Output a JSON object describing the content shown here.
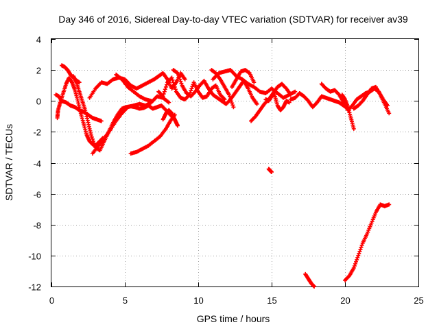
{
  "chart_data": {
    "type": "scatter",
    "title": "Day 346 of 2016, Sidereal Day-to-day VTEC variation (SDTVAR) for receiver av39",
    "xlabel": "GPS time / hours",
    "ylabel": "SDTVAR / TECUs",
    "xlim": [
      0,
      25
    ],
    "ylim": [
      -12,
      4
    ],
    "xticks": [
      0,
      5,
      10,
      15,
      20,
      25
    ],
    "yticks": [
      -12,
      -10,
      -8,
      -6,
      -4,
      -2,
      0,
      2,
      4
    ],
    "xtick_labels": [
      "0",
      "5",
      "10",
      "15",
      "20",
      "25"
    ],
    "ytick_labels": [
      "-12",
      "-10",
      "-8",
      "-6",
      "-4",
      "-2",
      "0",
      "2",
      "4"
    ],
    "grid": true,
    "marker": "+",
    "color": "#ff0000",
    "series": [
      {
        "name": "tr1",
        "x": [
          0.3,
          0.5,
          0.7,
          1.0,
          1.3,
          1.6,
          1.9,
          2.2,
          2.5,
          2.8,
          3.1,
          3.4
        ],
        "y": [
          0.4,
          0.3,
          0.0,
          -0.1,
          -0.3,
          -0.4,
          -0.6,
          -0.7,
          -0.9,
          -1.1,
          -1.2,
          -1.3
        ]
      },
      {
        "name": "tr2",
        "x": [
          0.4,
          0.45,
          0.6,
          0.8,
          1.0,
          1.2,
          1.4,
          1.6,
          1.8,
          2.0,
          2.2,
          2.4,
          2.6,
          2.8,
          3.0,
          3.2,
          3.5
        ],
        "y": [
          -1.1,
          -0.6,
          -0.1,
          0.5,
          1.1,
          1.5,
          1.2,
          0.7,
          0.0,
          -0.8,
          -1.5,
          -2.2,
          -2.6,
          -2.8,
          -2.9,
          -2.7,
          -2.4
        ]
      },
      {
        "name": "tr3",
        "x": [
          0.7,
          0.9,
          1.1,
          1.3,
          1.6,
          1.9
        ],
        "y": [
          2.3,
          2.2,
          2.0,
          1.7,
          1.4,
          1.2
        ]
      },
      {
        "name": "tr4",
        "x": [
          1.5,
          1.7,
          1.9,
          2.1,
          2.3,
          2.5,
          2.7,
          3.0,
          3.3,
          3.6,
          3.9,
          4.2,
          4.5,
          4.8,
          5.1,
          5.4,
          5.7,
          6.0,
          6.3,
          6.6,
          6.9,
          7.2,
          7.5,
          7.8,
          8.1,
          8.4,
          8.6
        ],
        "y": [
          1.6,
          1.2,
          0.6,
          0.0,
          -0.6,
          -1.4,
          -2.2,
          -3.0,
          -3.2,
          -2.6,
          -2.0,
          -1.4,
          -0.9,
          -0.5,
          -0.4,
          -0.35,
          -0.4,
          -0.5,
          -0.45,
          -0.3,
          -0.5,
          -0.4,
          -0.3,
          -0.6,
          -0.9,
          -1.2,
          -1.6
        ]
      },
      {
        "name": "tr5",
        "x": [
          2.8,
          3.2,
          3.6,
          4.0,
          4.4,
          4.8,
          5.2,
          5.6,
          6.0,
          6.4,
          6.8,
          7.2,
          7.6,
          8.0
        ],
        "y": [
          -3.4,
          -2.9,
          -2.4,
          -1.9,
          -1.3,
          -0.8,
          -0.4,
          -0.3,
          -0.2,
          -0.3,
          -0.1,
          0.3,
          0.2,
          -0.1
        ]
      },
      {
        "name": "tr6",
        "x": [
          2.6,
          3.0,
          3.4,
          3.8,
          4.2,
          4.6,
          5.0,
          5.4,
          5.8,
          6.2,
          6.6,
          7.0,
          7.3,
          7.6,
          7.9,
          8.2,
          8.5,
          8.8,
          9.1
        ],
        "y": [
          0.2,
          0.8,
          1.2,
          1.1,
          1.4,
          1.5,
          1.4,
          1.0,
          0.8,
          1.0,
          1.2,
          1.4,
          1.6,
          1.8,
          1.4,
          0.8,
          1.2,
          1.8,
          1.4
        ]
      },
      {
        "name": "tr7",
        "x": [
          4.4,
          4.8,
          5.2,
          5.6,
          6.0,
          6.4,
          6.8
        ],
        "y": [
          1.7,
          1.4,
          0.9,
          0.6,
          0.3,
          0.1,
          0.0
        ]
      },
      {
        "name": "tr8",
        "x": [
          5.4,
          5.8,
          6.2,
          6.6,
          7.0,
          7.4,
          7.8,
          8.1,
          8.4
        ],
        "y": [
          -3.4,
          -3.3,
          -3.1,
          -2.9,
          -2.6,
          -2.3,
          -1.8,
          -1.3,
          -0.9
        ]
      },
      {
        "name": "tr9",
        "x": [
          7.6,
          7.8,
          8.0,
          8.2,
          8.4,
          8.6
        ],
        "y": [
          -1.2,
          -0.8,
          -0.6,
          -0.8,
          -1.2,
          -1.6
        ]
      },
      {
        "name": "tr10",
        "x": [
          7.3,
          7.6,
          7.9,
          8.2,
          8.5,
          8.8,
          9.1,
          9.4,
          9.7,
          10.0,
          10.3,
          10.6,
          10.9,
          11.2,
          11.5,
          11.8
        ],
        "y": [
          0.6,
          0.3,
          1.2,
          1.5,
          0.6,
          0.2,
          0.1,
          0.4,
          1.2,
          0.6,
          0.2,
          0.3,
          0.8,
          1.0,
          0.4,
          0.1
        ]
      },
      {
        "name": "tr11",
        "x": [
          8.3,
          8.6,
          8.9,
          9.2,
          9.5,
          9.8,
          10.1,
          10.4,
          10.7,
          11.0,
          11.3,
          11.6,
          11.9,
          12.2,
          12.5,
          12.8,
          13.1,
          13.4,
          13.7,
          14.0
        ],
        "y": [
          2.0,
          1.8,
          1.0,
          0.5,
          0.3,
          0.6,
          1.0,
          1.3,
          0.8,
          0.4,
          0.2,
          0.0,
          -0.2,
          0.1,
          0.5,
          0.9,
          1.3,
          0.8,
          0.2,
          -0.2
        ]
      },
      {
        "name": "tr12",
        "x": [
          11.0,
          11.4,
          11.8,
          12.2,
          12.6,
          13.0,
          13.4,
          13.8,
          14.2,
          14.6,
          15.0,
          15.4,
          15.8,
          16.2,
          16.6
        ],
        "y": [
          1.4,
          1.8,
          1.9,
          2.0,
          1.6,
          1.4,
          1.1,
          0.9,
          0.6,
          0.5,
          0.8,
          0.5,
          0.2,
          0.4,
          0.6
        ]
      },
      {
        "name": "tr13",
        "x": [
          10.9,
          11.2,
          11.5,
          11.8,
          12.1,
          12.4
        ],
        "y": [
          2.0,
          1.8,
          1.4,
          0.9,
          0.4,
          -0.4
        ]
      },
      {
        "name": "tr14",
        "x": [
          12.3,
          12.6,
          12.9,
          13.2,
          13.5,
          13.8
        ],
        "y": [
          0.9,
          1.4,
          1.9,
          2.0,
          1.8,
          1.2
        ]
      },
      {
        "name": "tr15",
        "x": [
          13.6,
          13.9,
          14.2,
          14.5,
          14.8,
          15.1,
          15.4,
          15.7,
          16.0,
          16.3
        ],
        "y": [
          -1.3,
          -1.0,
          -0.6,
          -0.2,
          0.1,
          0.5,
          0.9,
          1.1,
          0.8,
          0.4
        ]
      },
      {
        "name": "tr16",
        "x": [
          14.6,
          14.8,
          15.0,
          15.2,
          15.4,
          15.6,
          15.8,
          16.0,
          16.2
        ],
        "y": [
          0.1,
          0.0,
          0.3,
          0.4,
          -0.3,
          -0.6,
          -0.4,
          0.0,
          -0.1
        ]
      },
      {
        "name": "tr17",
        "x": [
          16.3,
          16.6,
          16.9,
          17.2,
          17.5,
          17.8,
          18.1,
          18.4,
          18.7,
          19.0,
          19.3,
          19.6,
          19.9,
          20.2
        ],
        "y": [
          0.1,
          0.2,
          0.5,
          0.3,
          0.0,
          -0.4,
          -0.1,
          0.3,
          0.2,
          0.1,
          0.0,
          -0.1,
          -0.3,
          -0.5
        ]
      },
      {
        "name": "tr18",
        "x": [
          18.4,
          18.7,
          19.0,
          19.3,
          19.6,
          19.9,
          20.2,
          20.5,
          20.8,
          21.1,
          21.4,
          21.7,
          22.0,
          22.3,
          22.6,
          22.9
        ],
        "y": [
          1.1,
          0.8,
          0.6,
          0.7,
          0.4,
          -0.1,
          -0.6,
          -0.3,
          0.1,
          0.3,
          0.5,
          0.6,
          0.8,
          0.6,
          0.1,
          -0.3
        ]
      },
      {
        "name": "tr19",
        "x": [
          19.8,
          20.0,
          20.2,
          20.4,
          20.6
        ],
        "y": [
          0.4,
          0.1,
          -0.4,
          -1.1,
          -1.8
        ]
      },
      {
        "name": "tr20",
        "x": [
          20.6,
          20.9,
          21.2,
          21.5,
          21.8,
          22.1,
          22.4,
          22.7,
          23.0
        ],
        "y": [
          -0.5,
          -0.3,
          0.0,
          0.4,
          0.8,
          0.9,
          0.4,
          -0.2,
          -0.8
        ]
      },
      {
        "name": "tr21",
        "x": [
          14.8,
          14.9,
          15.0
        ],
        "y": [
          -4.4,
          -4.5,
          -4.6
        ]
      },
      {
        "name": "tr22",
        "x": [
          17.3,
          17.5,
          17.7,
          17.9
        ],
        "y": [
          -11.2,
          -11.5,
          -11.8,
          -12.0
        ]
      },
      {
        "name": "tr23",
        "x": [
          20.0,
          20.3,
          20.6,
          20.9,
          21.2,
          21.5,
          21.8,
          22.1,
          22.4,
          22.7,
          23.0
        ],
        "y": [
          -11.6,
          -11.3,
          -10.8,
          -10.0,
          -9.2,
          -8.6,
          -7.9,
          -7.2,
          -6.7,
          -6.8,
          -6.7
        ]
      }
    ]
  }
}
